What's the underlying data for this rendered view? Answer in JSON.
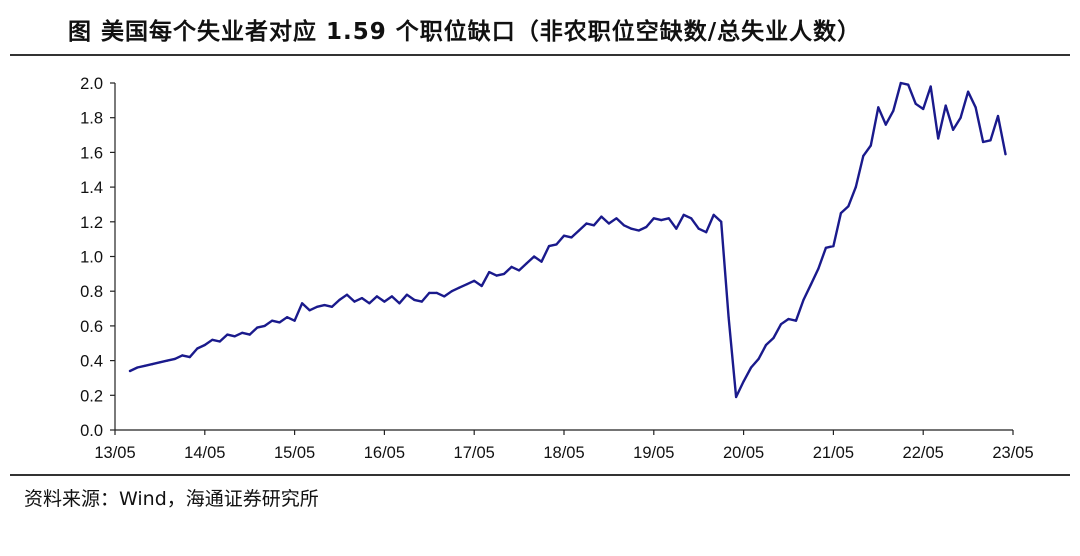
{
  "title": "图  美国每个失业者对应 1.59 个职位缺口（非农职位空缺数/总失业人数）",
  "source": "资料来源：Wind，海通证券研究所",
  "colors": {
    "line": "#1a1a8c",
    "axis": "#222222"
  },
  "chart_data": {
    "type": "line",
    "title": "图  美国每个失业者对应 1.59 个职位缺口（非农职位空缺数/总失业人数）",
    "xlabel": "",
    "ylabel": "",
    "ylim": [
      0,
      2.0
    ],
    "y_ticks": [
      "0.0",
      "0.2",
      "0.4",
      "0.6",
      "0.8",
      "1.0",
      "1.2",
      "1.4",
      "1.6",
      "1.8",
      "2.0"
    ],
    "x_ticks": [
      "13/05",
      "14/05",
      "15/05",
      "16/05",
      "17/05",
      "18/05",
      "19/05",
      "20/05",
      "21/05",
      "22/05",
      "23/05"
    ],
    "grid": false,
    "series": [
      {
        "name": "",
        "x": [
          "13/07",
          "13/08",
          "13/09",
          "13/10",
          "13/11",
          "13/12",
          "14/01",
          "14/02",
          "14/03",
          "14/04",
          "14/05",
          "14/06",
          "14/07",
          "14/08",
          "14/09",
          "14/10",
          "14/11",
          "14/12",
          "15/01",
          "15/02",
          "15/03",
          "15/04",
          "15/05",
          "15/06",
          "15/07",
          "15/08",
          "15/09",
          "15/10",
          "15/11",
          "15/12",
          "16/01",
          "16/02",
          "16/03",
          "16/04",
          "16/05",
          "16/06",
          "16/07",
          "16/08",
          "16/09",
          "16/10",
          "16/11",
          "16/12",
          "17/01",
          "17/02",
          "17/03",
          "17/04",
          "17/05",
          "17/06",
          "17/07",
          "17/08",
          "17/09",
          "17/10",
          "17/11",
          "17/12",
          "18/01",
          "18/02",
          "18/03",
          "18/04",
          "18/05",
          "18/06",
          "18/07",
          "18/08",
          "18/09",
          "18/10",
          "18/11",
          "18/12",
          "19/01",
          "19/02",
          "19/03",
          "19/04",
          "19/05",
          "19/06",
          "19/07",
          "19/08",
          "19/09",
          "19/10",
          "19/11",
          "19/12",
          "20/01",
          "20/02",
          "20/03",
          "20/04",
          "20/05",
          "20/06",
          "20/07",
          "20/08",
          "20/09",
          "20/10",
          "20/11",
          "20/12",
          "21/01",
          "21/02",
          "21/03",
          "21/04",
          "21/05",
          "21/06",
          "21/07",
          "21/08",
          "21/09",
          "21/10",
          "21/11",
          "21/12",
          "22/01",
          "22/02",
          "22/03",
          "22/04",
          "22/05",
          "22/06",
          "22/07",
          "22/08",
          "22/09",
          "22/10",
          "22/11",
          "22/12",
          "23/01",
          "23/02",
          "23/03",
          "23/04"
        ],
        "values": [
          0.34,
          0.36,
          0.37,
          0.38,
          0.39,
          0.4,
          0.41,
          0.43,
          0.42,
          0.47,
          0.49,
          0.52,
          0.51,
          0.55,
          0.54,
          0.56,
          0.55,
          0.59,
          0.6,
          0.63,
          0.62,
          0.65,
          0.63,
          0.73,
          0.69,
          0.71,
          0.72,
          0.71,
          0.75,
          0.78,
          0.74,
          0.76,
          0.73,
          0.77,
          0.74,
          0.77,
          0.73,
          0.78,
          0.75,
          0.74,
          0.79,
          0.79,
          0.77,
          0.8,
          0.82,
          0.84,
          0.86,
          0.83,
          0.91,
          0.89,
          0.9,
          0.94,
          0.92,
          0.96,
          1.0,
          0.97,
          1.06,
          1.07,
          1.12,
          1.11,
          1.15,
          1.19,
          1.18,
          1.23,
          1.19,
          1.22,
          1.18,
          1.16,
          1.15,
          1.17,
          1.22,
          1.21,
          1.22,
          1.16,
          1.24,
          1.22,
          1.16,
          1.14,
          1.24,
          1.2,
          0.65,
          0.19,
          0.28,
          0.36,
          0.41,
          0.49,
          0.53,
          0.61,
          0.64,
          0.63,
          0.75,
          0.84,
          0.93,
          1.05,
          1.06,
          1.25,
          1.29,
          1.4,
          1.58,
          1.64,
          1.86,
          1.76,
          1.84,
          2.0,
          1.99,
          1.88,
          1.85,
          1.98,
          1.68,
          1.87,
          1.73,
          1.8,
          1.95,
          1.86,
          1.66,
          1.67,
          1.81,
          1.59
        ]
      }
    ]
  }
}
